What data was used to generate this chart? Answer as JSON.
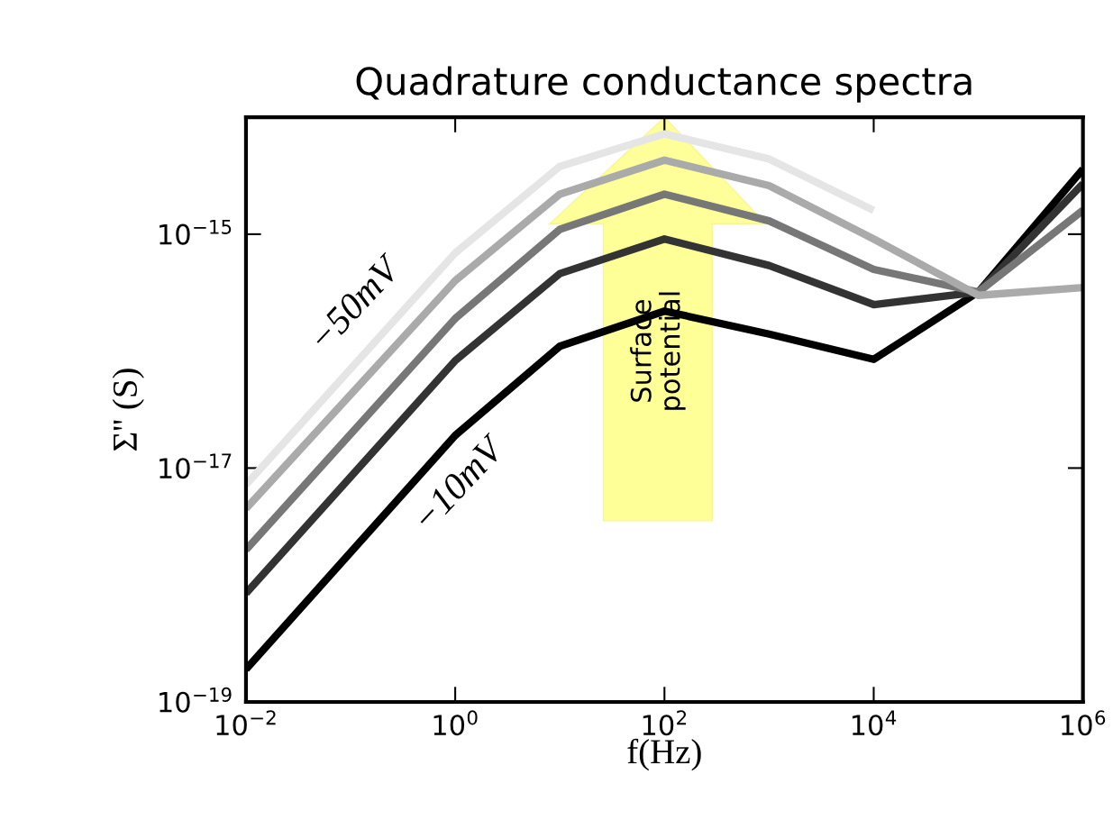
{
  "chart_data": {
    "type": "line",
    "title": "Quadrature conductance spectra",
    "xlabel": "f(Hz)",
    "ylabel": "Σ'' (S)",
    "x": [
      0.01,
      1,
      10,
      100,
      1000,
      10000,
      100000,
      1000000
    ],
    "series": [
      {
        "color": "#000000",
        "values": [
          1.9e-19,
          1.9e-17,
          1.1e-16,
          2.2e-16,
          1.4e-16,
          8.5e-17,
          3.2e-16,
          3.6e-15
        ]
      },
      {
        "color": "#333333",
        "values": [
          8.5e-19,
          8.3e-17,
          4.6e-16,
          9.1e-16,
          5.4e-16,
          2.5e-16,
          3.2e-16,
          2.7e-15
        ]
      },
      {
        "color": "#777777",
        "values": [
          2e-18,
          1.9e-16,
          1.1e-15,
          2.2e-15,
          1.3e-15,
          5e-16,
          3.2e-16,
          1.6e-15
        ]
      },
      {
        "color": "#aaaaaa",
        "values": [
          4.5e-18,
          4e-16,
          2.2e-15,
          4.3e-15,
          2.6e-15,
          9.1e-16,
          3e-16,
          3.5e-16
        ]
      },
      {
        "color": "#e5e5e5",
        "values": [
          7.2e-18,
          6.9e-16,
          3.8e-15,
          7.2e-15,
          4.4e-15,
          1.6e-15,
          null,
          null
        ]
      }
    ],
    "log": "xy",
    "xlim": [
      0.01,
      1000000
    ],
    "ylim": [
      1e-19,
      1e-14
    ],
    "xticks": [
      {
        "value": 0.01,
        "label": "10$^{−2}$"
      },
      {
        "value": 1,
        "label": "10$^{0}$"
      },
      {
        "value": 100,
        "label": "10$^{2}$"
      },
      {
        "value": 10000,
        "label": "10$^{4}$"
      },
      {
        "value": 1000000,
        "label": "10$^{6}$"
      }
    ],
    "yticks": [
      {
        "value": 1e-19,
        "label": "10$^{−19}$"
      },
      {
        "value": 1e-17,
        "label": "10$^{−17}$"
      },
      {
        "value": 1e-15,
        "label": "10$^{−15}$"
      }
    ],
    "grid": false,
    "marker": "none",
    "line_style": "solid",
    "annotations": [
      "−50mV",
      "−10mV",
      "Surface\npotential"
    ]
  }
}
